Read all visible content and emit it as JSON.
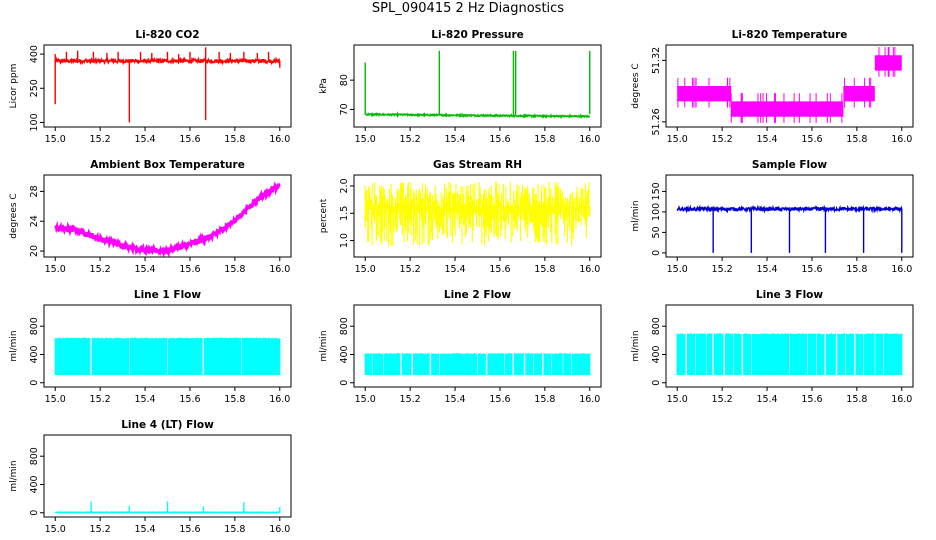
{
  "title": "SPL_090415  2 Hz Diagnostics",
  "chart_data": [
    {
      "type": "line",
      "title": "Li-820 CO2",
      "ylabel": "Licor ppm",
      "color": "#ff0000",
      "xlim": [
        14.95,
        16.05
      ],
      "xticks": [
        "15.0",
        "15.2",
        "15.4",
        "15.6",
        "15.8",
        "16.0"
      ],
      "ylim": [
        80,
        440
      ],
      "yticks": [
        "100",
        "250",
        "400"
      ],
      "pattern": {
        "kind": "flat",
        "base": 370,
        "noise": 8
      },
      "spikes": [
        {
          "x": 15.0,
          "y": 180
        },
        {
          "x": 15.0,
          "y": 400
        },
        {
          "x": 15.05,
          "y": 410
        },
        {
          "x": 15.1,
          "y": 415
        },
        {
          "x": 15.17,
          "y": 410
        },
        {
          "x": 15.23,
          "y": 405
        },
        {
          "x": 15.28,
          "y": 410
        },
        {
          "x": 15.33,
          "y": 100
        },
        {
          "x": 15.38,
          "y": 410
        },
        {
          "x": 15.43,
          "y": 405
        },
        {
          "x": 15.5,
          "y": 410
        },
        {
          "x": 15.55,
          "y": 400
        },
        {
          "x": 15.6,
          "y": 410
        },
        {
          "x": 15.67,
          "y": 430
        },
        {
          "x": 15.67,
          "y": 110
        },
        {
          "x": 15.73,
          "y": 410
        },
        {
          "x": 15.78,
          "y": 405
        },
        {
          "x": 15.84,
          "y": 410
        },
        {
          "x": 15.9,
          "y": 405
        },
        {
          "x": 15.95,
          "y": 410
        },
        {
          "x": 16.0,
          "y": 340
        }
      ]
    },
    {
      "type": "line",
      "title": "Li-820 Pressure",
      "ylabel": "kPa",
      "color": "#00bb00",
      "xlim": [
        14.95,
        16.05
      ],
      "xticks": [
        "15.0",
        "15.2",
        "15.4",
        "15.6",
        "15.8",
        "16.0"
      ],
      "ylim": [
        64,
        92
      ],
      "yticks": [
        "70",
        "80"
      ],
      "pattern": {
        "kind": "slope",
        "start": 68.3,
        "end": 67.6,
        "noise": 0.25
      },
      "spikes": [
        {
          "x": 15.0,
          "y": 86
        },
        {
          "x": 15.33,
          "y": 90
        },
        {
          "x": 15.66,
          "y": 90
        },
        {
          "x": 15.67,
          "y": 90
        },
        {
          "x": 16.0,
          "y": 90
        }
      ]
    },
    {
      "type": "line",
      "title": "Li-820 Temperature",
      "ylabel": "degrees C",
      "color": "#ff00ff",
      "xlim": [
        14.95,
        16.05
      ],
      "xticks": [
        "15.0",
        "15.2",
        "15.4",
        "15.6",
        "15.8",
        "16.0"
      ],
      "ylim": [
        51.255,
        51.335
      ],
      "yticks": [
        "51.26",
        "51.32"
      ],
      "pattern": {
        "kind": "step",
        "levels": [
          {
            "x0": 15.0,
            "x1": 15.24,
            "lo": 51.28,
            "hi": 51.295
          },
          {
            "x0": 15.24,
            "x1": 15.74,
            "lo": 51.265,
            "hi": 51.28
          },
          {
            "x0": 15.74,
            "x1": 15.88,
            "lo": 51.28,
            "hi": 51.295
          },
          {
            "x0": 15.88,
            "x1": 16.0,
            "lo": 51.31,
            "hi": 51.325
          }
        ]
      }
    },
    {
      "type": "line",
      "title": "Ambient Box Temperature",
      "ylabel": "degrees C",
      "color": "#ff00ff",
      "xlim": [
        14.95,
        16.05
      ],
      "xticks": [
        "15.0",
        "15.2",
        "15.4",
        "15.6",
        "15.8",
        "16.0"
      ],
      "ylim": [
        19.2,
        30.2
      ],
      "yticks": [
        "20",
        "24",
        "28"
      ],
      "pattern": {
        "kind": "curve",
        "x": [
          15.0,
          15.1,
          15.2,
          15.3,
          15.4,
          15.5,
          15.6,
          15.7,
          15.8,
          15.9,
          16.0
        ],
        "y": [
          23.1,
          22.8,
          21.6,
          20.8,
          20.1,
          20.1,
          20.9,
          22.0,
          24.1,
          27.0,
          28.8
        ],
        "noise": 0.35
      }
    },
    {
      "type": "line",
      "title": "Gas Stream RH",
      "ylabel": "percent",
      "color": "#ffff00",
      "xlim": [
        14.95,
        16.05
      ],
      "xticks": [
        "15.0",
        "15.2",
        "15.4",
        "15.6",
        "15.8",
        "16.0"
      ],
      "ylim": [
        0.7,
        2.2
      ],
      "yticks": [
        "1.0",
        "1.5",
        "2.0"
      ],
      "pattern": {
        "kind": "band",
        "lo": 0.9,
        "hi": 2.08,
        "mean": 1.6
      }
    },
    {
      "type": "line",
      "title": "Sample Flow",
      "ylabel": "ml/min",
      "color": "#0000cc",
      "xlim": [
        14.95,
        16.05
      ],
      "xticks": [
        "15.0",
        "15.2",
        "15.4",
        "15.6",
        "15.8",
        "16.0"
      ],
      "ylim": [
        -10,
        190
      ],
      "yticks": [
        "0",
        "50",
        "100",
        "150"
      ],
      "pattern": {
        "kind": "flat",
        "base": 107,
        "noise": 4
      },
      "spikes": [
        {
          "x": 15.16,
          "y": 0
        },
        {
          "x": 15.33,
          "y": 0
        },
        {
          "x": 15.5,
          "y": 0
        },
        {
          "x": 15.66,
          "y": 0
        },
        {
          "x": 15.83,
          "y": 0
        },
        {
          "x": 16.0,
          "y": 0
        }
      ]
    },
    {
      "type": "line",
      "title": "Line 1 Flow",
      "ylabel": "ml/min",
      "color": "#00ffff",
      "xlim": [
        14.95,
        16.05
      ],
      "xticks": [
        "15.0",
        "15.2",
        "15.4",
        "15.6",
        "15.8",
        "16.0"
      ],
      "ylim": [
        -60,
        1100
      ],
      "yticks": [
        "0",
        "400",
        "800"
      ],
      "pattern": {
        "kind": "band",
        "lo": 110,
        "hi": 640,
        "gaps": [
          15.16,
          15.33,
          15.5,
          15.66,
          15.83
        ]
      }
    },
    {
      "type": "line",
      "title": "Line 2 Flow",
      "ylabel": "ml/min",
      "color": "#00ffff",
      "xlim": [
        14.95,
        16.05
      ],
      "xticks": [
        "15.0",
        "15.2",
        "15.4",
        "15.6",
        "15.8",
        "16.0"
      ],
      "ylim": [
        -60,
        1100
      ],
      "yticks": [
        "0",
        "400",
        "800"
      ],
      "pattern": {
        "kind": "band",
        "lo": 110,
        "hi": 420,
        "gaps": [
          15.03,
          15.08,
          15.16,
          15.21,
          15.29,
          15.33,
          15.5,
          15.54,
          15.62,
          15.66,
          15.71,
          15.75,
          15.79,
          15.83,
          15.88,
          15.92
        ]
      }
    },
    {
      "type": "line",
      "title": "Line 3 Flow",
      "ylabel": "ml/min",
      "color": "#00ffff",
      "xlim": [
        14.95,
        16.05
      ],
      "xticks": [
        "15.0",
        "15.2",
        "15.4",
        "15.6",
        "15.8",
        "16.0"
      ],
      "ylim": [
        -60,
        1100
      ],
      "yticks": [
        "0",
        "400",
        "800"
      ],
      "pattern": {
        "kind": "band",
        "lo": 110,
        "hi": 700,
        "gaps": [
          15.04,
          15.08,
          15.13,
          15.16,
          15.21,
          15.25,
          15.29,
          15.33,
          15.5,
          15.58,
          15.62,
          15.66,
          15.71,
          15.75,
          15.79,
          15.83,
          15.88,
          15.92
        ]
      }
    },
    {
      "type": "line",
      "title": "Line 4 (LT) Flow",
      "ylabel": "ml/min",
      "color": "#00ffff",
      "xlim": [
        14.95,
        16.05
      ],
      "xticks": [
        "15.0",
        "15.2",
        "15.4",
        "15.6",
        "15.8",
        "16.0"
      ],
      "ylim": [
        -60,
        1100
      ],
      "yticks": [
        "0",
        "400",
        "800"
      ],
      "pattern": {
        "kind": "flat",
        "base": 5,
        "noise": 3
      },
      "spikes": [
        {
          "x": 15.16,
          "y": 160
        },
        {
          "x": 15.33,
          "y": 100
        },
        {
          "x": 15.5,
          "y": 160
        },
        {
          "x": 15.66,
          "y": 90
        },
        {
          "x": 15.84,
          "y": 150
        },
        {
          "x": 16.0,
          "y": 80
        }
      ]
    }
  ]
}
